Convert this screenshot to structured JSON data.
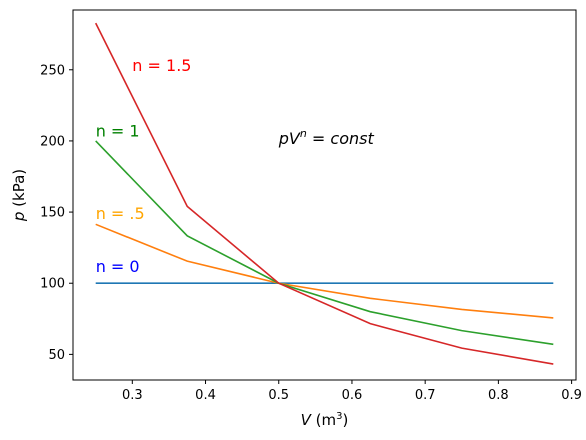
{
  "chart_data": {
    "type": "line",
    "xlabel_var": "V",
    "xlabel_unit_open": "(m",
    "xlabel_unit_exp": "3",
    "xlabel_unit_close": ")",
    "ylabel_var": "p",
    "ylabel_unit": "(kPa)",
    "xlim": [
      0.219,
      0.906
    ],
    "ylim": [
      32,
      292
    ],
    "xticks": [
      0.3,
      0.4,
      0.5,
      0.6,
      0.7,
      0.8,
      0.9
    ],
    "yticks": [
      50,
      100,
      150,
      200,
      250
    ],
    "xtick_labels": [
      "0.3",
      "0.4",
      "0.5",
      "0.6",
      "0.7",
      "0.8",
      "0.9"
    ],
    "ytick_labels": [
      "50",
      "100",
      "150",
      "200",
      "250"
    ],
    "grid": false,
    "x": [
      0.25,
      0.375,
      0.5,
      0.625,
      0.75,
      0.875
    ],
    "series": [
      {
        "name": "n = 0",
        "color": "#1f77b4",
        "values": [
          100,
          100,
          100,
          100,
          100,
          100
        ]
      },
      {
        "name": "n = .5",
        "color": "#ff7f0e",
        "values": [
          141.4,
          115.5,
          100,
          89.4,
          81.6,
          75.6
        ]
      },
      {
        "name": "n = 1",
        "color": "#2ca02c",
        "values": [
          200,
          133.3,
          100,
          80,
          66.7,
          57.1
        ]
      },
      {
        "name": "n = 1.5",
        "color": "#d62728",
        "values": [
          282.8,
          154.0,
          100,
          71.6,
          54.4,
          43.2
        ]
      }
    ],
    "annotations": [
      {
        "text": "n = 0",
        "color": "#0000ff",
        "x": 0.25,
        "y": 108
      },
      {
        "text": "n = .5",
        "color": "#ffa500",
        "x": 0.25,
        "y": 145
      },
      {
        "text": "n = 1",
        "color": "#008000",
        "x": 0.25,
        "y": 203
      },
      {
        "text": "n = 1.5",
        "color": "#ff0000",
        "x": 0.3,
        "y": 249
      }
    ],
    "equation": {
      "base": "pV",
      "exp": "n",
      "rest": " = const",
      "x": 0.5,
      "y": 198
    }
  }
}
